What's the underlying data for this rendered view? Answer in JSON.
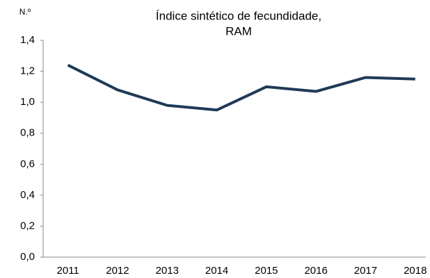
{
  "chart_data": {
    "type": "line",
    "title": [
      "Índice sintético de fecundidade,",
      "RAM"
    ],
    "y_label": "N.º",
    "categories": [
      "2011",
      "2012",
      "2013",
      "2014",
      "2015",
      "2016",
      "2017",
      "2018"
    ],
    "series": [
      {
        "name": "RAM",
        "color": "#1f3a56",
        "values": [
          1.24,
          1.08,
          0.98,
          0.95,
          1.1,
          1.07,
          1.16,
          1.15
        ]
      }
    ],
    "ylim": [
      0,
      1.4
    ],
    "yticks": [
      {
        "value": 0,
        "label": "0,0"
      },
      {
        "value": 0.2,
        "label": "0,2"
      },
      {
        "value": 0.4,
        "label": "0,4"
      },
      {
        "value": 0.6,
        "label": "0,6"
      },
      {
        "value": 0.8,
        "label": "0,8"
      },
      {
        "value": 1.0,
        "label": "1,0"
      },
      {
        "value": 1.2,
        "label": "1,2"
      },
      {
        "value": 1.4,
        "label": "1,4"
      }
    ],
    "grid": false
  }
}
